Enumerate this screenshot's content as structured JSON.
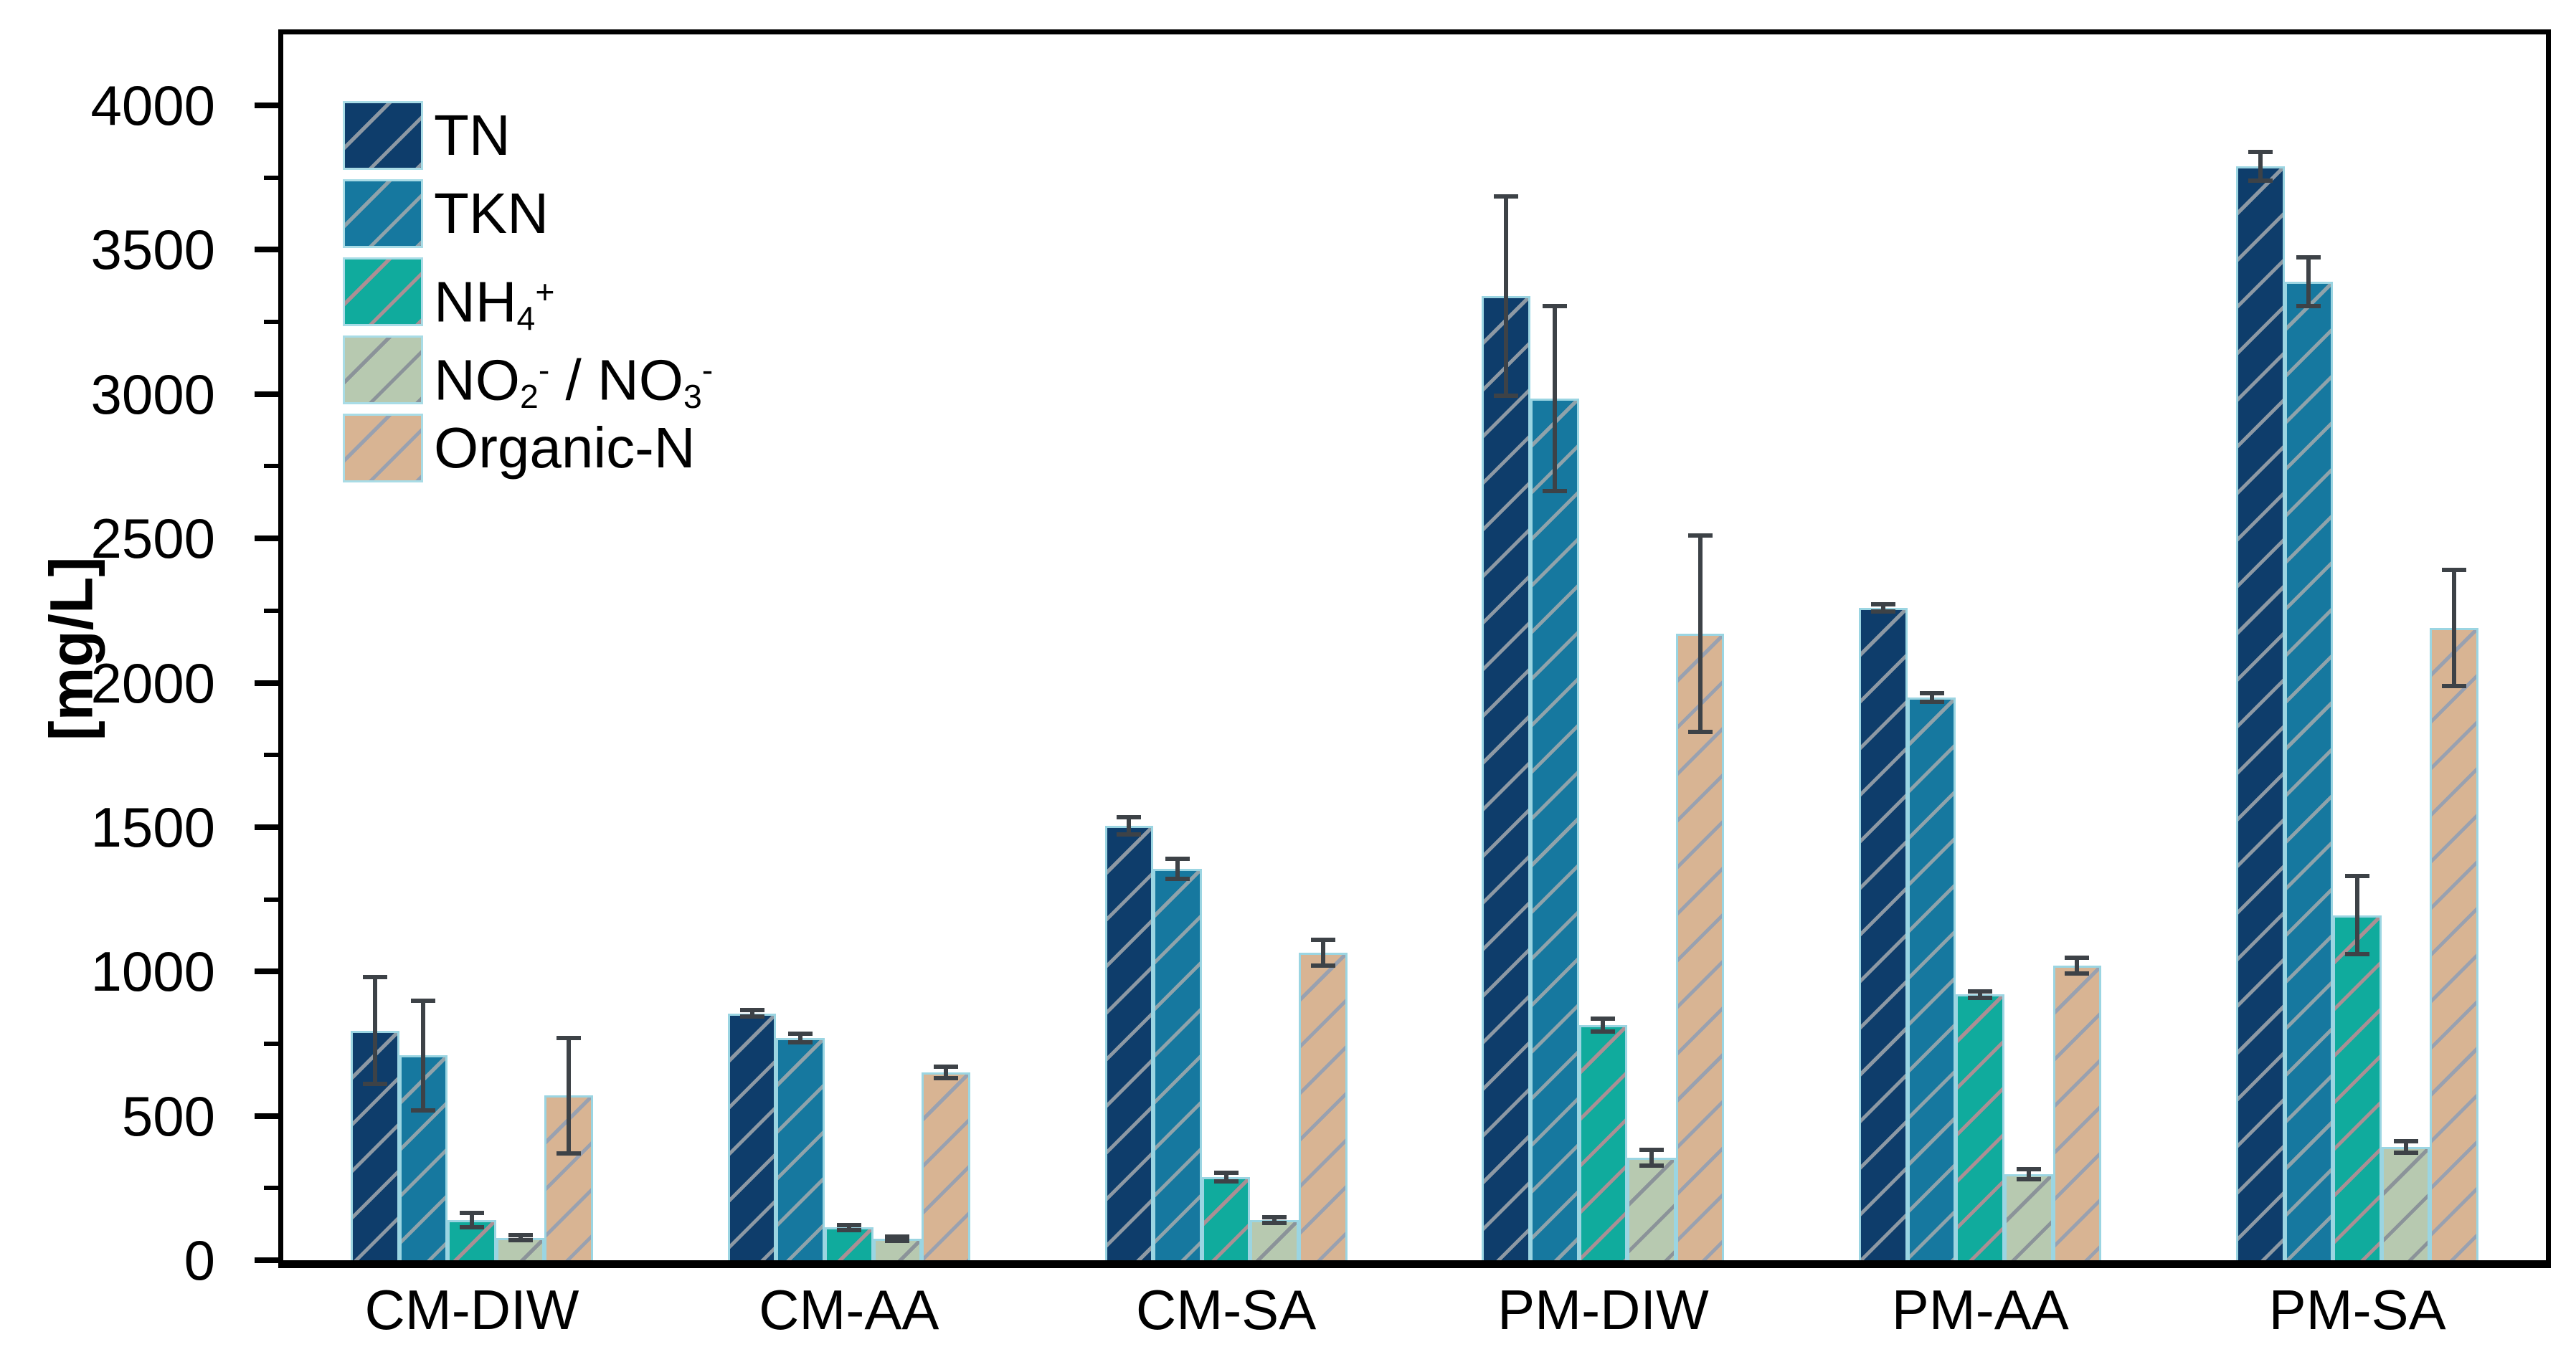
{
  "figure": {
    "kind": "grouped-bar-chart",
    "background": "#ffffff",
    "frame_color": "#000000",
    "bar_edge_color": "#9bd5e2",
    "error_bar_color": "#3d4247"
  },
  "y_axis": {
    "title": "[mg/L]",
    "min": 0,
    "max": 4246,
    "major_tick_step": 500,
    "minor_tick_step": 250,
    "major_ticks": [
      0,
      500,
      1000,
      1500,
      2000,
      2500,
      3000,
      3500,
      4000
    ]
  },
  "x_axis": {
    "categories": [
      "CM-DIW",
      "CM-AA",
      "CM-SA",
      "PM-DIW",
      "PM-AA",
      "PM-SA"
    ]
  },
  "legend": {
    "position": "upper-left"
  },
  "chart_data": {
    "type": "bar",
    "grouped": true,
    "title": "",
    "xlabel": "",
    "ylabel": "[mg/L]",
    "ylim": [
      0,
      4246
    ],
    "grid": false,
    "legend_position": "upper-left",
    "error_bars": true,
    "hatch_pattern": "diagonal-forward",
    "categories": [
      "CM-DIW",
      "CM-AA",
      "CM-SA",
      "PM-DIW",
      "PM-AA",
      "PM-SA"
    ],
    "series": [
      {
        "name": "TN",
        "color": "#0e3d6b",
        "hatch_color": "#8d99a4",
        "values": [
          795,
          855,
          1505,
          3340,
          2260,
          3790
        ],
        "errors": [
          185,
          12,
          30,
          345,
          12,
          50
        ],
        "label_segments": [
          {
            "t": "TN"
          }
        ]
      },
      {
        "name": "TKN",
        "color": "#16789f",
        "hatch_color": "#8fa3ab",
        "values": [
          710,
          770,
          1355,
          2985,
          1950,
          3390
        ],
        "errors": [
          190,
          15,
          35,
          320,
          15,
          85
        ],
        "label_segments": [
          {
            "t": "TKN"
          }
        ]
      },
      {
        "name": "NH4+",
        "color": "#10ab9d",
        "hatch_color": "#ab8f94",
        "values": [
          140,
          113,
          288,
          815,
          920,
          1195
        ],
        "errors": [
          25,
          8,
          15,
          22,
          10,
          135
        ],
        "label_segments": [
          {
            "t": "NH"
          },
          {
            "t": "4",
            "pos": "sub"
          },
          {
            "t": "+",
            "pos": "sup"
          }
        ]
      },
      {
        "name": "NO2-/NO3-",
        "color": "#b7c9b0",
        "hatch_color": "#8b9399",
        "values": [
          78,
          75,
          140,
          355,
          298,
          393
        ],
        "errors": [
          8,
          8,
          10,
          28,
          18,
          20
        ],
        "label_segments": [
          {
            "t": "NO"
          },
          {
            "t": "2",
            "pos": "sub"
          },
          {
            "t": "-",
            "pos": "sup"
          },
          {
            "t": " / NO"
          },
          {
            "t": "3",
            "pos": "sub"
          },
          {
            "t": "-",
            "pos": "sup"
          }
        ]
      },
      {
        "name": "Organic-N",
        "color": "#d8b493",
        "hatch_color": "#99a1b0",
        "values": [
          570,
          650,
          1065,
          2170,
          1020,
          2190
        ],
        "errors": [
          200,
          20,
          45,
          340,
          28,
          200
        ],
        "label_segments": [
          {
            "t": "Organic-N"
          }
        ]
      }
    ]
  }
}
